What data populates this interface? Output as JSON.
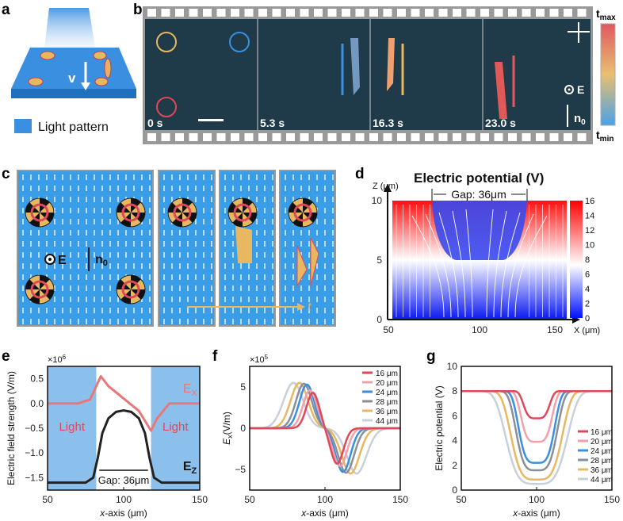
{
  "panel_labels": [
    "a",
    "b",
    "c",
    "d",
    "e",
    "f",
    "g"
  ],
  "panel_a": {
    "velocity_label": "v",
    "legend": "Light pattern"
  },
  "panel_b": {
    "timestamps": [
      "0 s",
      "5.3 s",
      "16.3 s",
      "23.0 s"
    ],
    "colorbar_max": "t",
    "colorbar_max_sub": "max",
    "colorbar_min": "t",
    "colorbar_min_sub": "min",
    "field_label": "E",
    "director_label": "n",
    "director_sub": "0"
  },
  "panel_c": {
    "field_label": "E",
    "director_label": "n",
    "director_sub": "0",
    "time_label": "t"
  },
  "colors": {
    "light": "#4a9de0",
    "red": "#e0485a",
    "pink": "#f08890",
    "blue": "#3a8fe0",
    "gray": "#8a8f98",
    "gold": "#e8b860",
    "silver": "#c8d0da",
    "black": "#222222"
  },
  "chart_data": [
    {
      "id": "d",
      "type": "heatmap",
      "title": "Electric potential (V)",
      "xlabel": "X (μm)",
      "ylabel": "Z (μm)",
      "annotation": "Gap: 36μm",
      "xlim": [
        50,
        150
      ],
      "ylim": [
        0,
        10
      ],
      "xticks": [
        "50",
        "100",
        "150"
      ],
      "yticks": [
        "0",
        "5",
        "10"
      ],
      "colorbar": {
        "range": [
          0,
          16
        ],
        "ticks": [
          "0",
          "2",
          "4",
          "6",
          "8",
          "10",
          "12",
          "14",
          "16"
        ]
      },
      "electrodes_V": 16,
      "gap_um": 36
    },
    {
      "id": "e",
      "type": "line",
      "multiplier": "×10",
      "multiplier_exp": "6",
      "xlabel": "x-axis (μm)",
      "ylabel": "Electric field strength (V/m)",
      "xlim": [
        50,
        150
      ],
      "ylim": [
        -1.75,
        0.75
      ],
      "xticks": [
        "50",
        "100",
        "150"
      ],
      "yticks": [
        "0.5",
        "0.0",
        "−0.5",
        "−1.0",
        "−1.5"
      ],
      "light_regions": [
        [
          50,
          82
        ],
        [
          118,
          150
        ]
      ],
      "light_label": "Light",
      "annotation": "Gap: 36μm",
      "series": [
        {
          "name": "E",
          "sub": "X",
          "color": "#e87878",
          "x": [
            50,
            70,
            78,
            82,
            85,
            90,
            100,
            110,
            115,
            118,
            122,
            130,
            150
          ],
          "y": [
            0,
            0,
            0.08,
            0.35,
            0.55,
            0.35,
            0.1,
            -0.15,
            -0.4,
            -0.55,
            -0.3,
            0,
            0
          ]
        },
        {
          "name": "E",
          "sub": "Z",
          "color": "#222222",
          "x": [
            50,
            75,
            80,
            83,
            86,
            90,
            95,
            100,
            105,
            110,
            114,
            117,
            120,
            125,
            150
          ],
          "y": [
            -1.6,
            -1.6,
            -1.5,
            -1.1,
            -0.6,
            -0.3,
            -0.17,
            -0.14,
            -0.17,
            -0.3,
            -0.6,
            -1.1,
            -1.5,
            -1.6,
            -1.6
          ]
        }
      ]
    },
    {
      "id": "f",
      "type": "line",
      "multiplier": "×10",
      "multiplier_exp": "5",
      "xlabel": "x-axis (μm)",
      "ylabel": "E",
      "ylabel_sub": "x",
      "ylabel_unit": "(V/m)",
      "xlim": [
        50,
        150
      ],
      "ylim": [
        -7.5,
        7.5
      ],
      "xticks": [
        "50",
        "100",
        "150"
      ],
      "yticks": [
        "5",
        "0",
        "−5"
      ],
      "legend_position": "top-right",
      "series": [
        {
          "name": "16 μm",
          "color": "#e0485a",
          "peak_x": 92,
          "trough_x": 108,
          "amp": 4.3
        },
        {
          "name": "20 μm",
          "color": "#f4a0a8",
          "peak_x": 90,
          "trough_x": 110,
          "amp": 4.6
        },
        {
          "name": "24 μm",
          "color": "#3a8fe0",
          "peak_x": 88,
          "trough_x": 112,
          "amp": 5.3
        },
        {
          "name": "28 μm",
          "color": "#8a8f98",
          "peak_x": 86,
          "trough_x": 114,
          "amp": 5.4
        },
        {
          "name": "36 μm",
          "color": "#e8b860",
          "peak_x": 83,
          "trough_x": 117,
          "amp": 5.5
        },
        {
          "name": "44 μm",
          "color": "#c8d0da",
          "peak_x": 79,
          "trough_x": 121,
          "amp": 5.5
        }
      ]
    },
    {
      "id": "g",
      "type": "line",
      "xlabel": "x-axis (μm)",
      "ylabel": "Electric potential (V)",
      "xlim": [
        50,
        150
      ],
      "ylim": [
        0,
        10
      ],
      "xticks": [
        "50",
        "100",
        "150"
      ],
      "yticks": [
        "0",
        "2",
        "4",
        "6",
        "8",
        "10"
      ],
      "legend_position": "bottom-right",
      "baseline": 8,
      "series": [
        {
          "name": "16 μm",
          "color": "#e0485a",
          "min": 5.8,
          "gap": 16
        },
        {
          "name": "20 μm",
          "color": "#f4a0a8",
          "min": 3.9,
          "gap": 20
        },
        {
          "name": "24 μm",
          "color": "#3a8fe0",
          "min": 2.2,
          "gap": 24
        },
        {
          "name": "28 μm",
          "color": "#8a8f98",
          "min": 1.6,
          "gap": 28
        },
        {
          "name": "36 μm",
          "color": "#e8b860",
          "min": 0.85,
          "gap": 36
        },
        {
          "name": "44 μm",
          "color": "#c8d0da",
          "min": 0.5,
          "gap": 44
        }
      ]
    }
  ]
}
